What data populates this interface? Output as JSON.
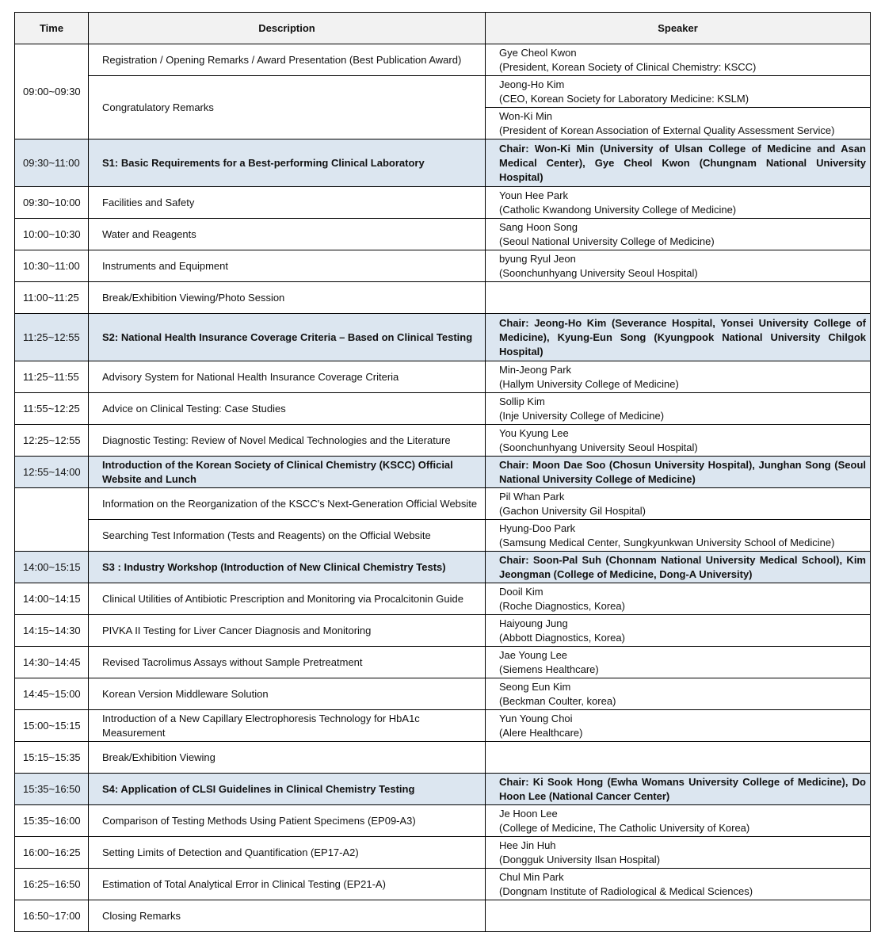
{
  "header": {
    "time": "Time",
    "description": "Description",
    "speaker": "Speaker"
  },
  "colors": {
    "header_bg": "#f2f2f2",
    "session_bg": "#dce6f0"
  },
  "rows": [
    {
      "time": "09:00~09:30",
      "description": "Registration / Opening Remarks / Award Presentation (Best Publication Award)",
      "speaker": [
        "Gye Cheol Kwon",
        "(President, Korean Society of Clinical Chemistry: KSCC)"
      ]
    },
    {
      "time": null,
      "description": "Congratulatory Remarks",
      "speaker": [
        "Jeong-Ho Kim",
        "(CEO, Korean Society for Laboratory Medicine: KSLM)"
      ]
    },
    {
      "time": null,
      "description": null,
      "speaker": [
        "Won-Ki Min",
        "(President of Korean Association of External Quality Assessment Service)"
      ]
    },
    {
      "session": true,
      "time": "09:30~11:00",
      "description": "S1: Basic Requirements for a Best-performing Clinical Laboratory",
      "speaker": [
        "Chair: Won-Ki Min (University of Ulsan College of Medicine and Asan Medical Center), Gye Cheol Kwon (Chungnam National University Hospital)"
      ]
    },
    {
      "time": "09:30~10:00",
      "description": "Facilities and Safety",
      "speaker": [
        "Youn Hee Park",
        "(Catholic Kwandong University College of Medicine)"
      ]
    },
    {
      "time": "10:00~10:30",
      "description": "Water and Reagents",
      "speaker": [
        "Sang Hoon Song",
        "(Seoul National University College of Medicine)"
      ]
    },
    {
      "time": "10:30~11:00",
      "description": "Instruments and Equipment",
      "speaker": [
        "byung Ryul Jeon",
        "(Soonchunhyang University Seoul Hospital)"
      ]
    },
    {
      "time": "11:00~11:25",
      "description": "Break/Exhibition Viewing/Photo Session",
      "speaker": []
    },
    {
      "session": true,
      "time": "11:25~12:55",
      "description": "S2: National Health Insurance Coverage Criteria – Based on Clinical Testing",
      "speaker": [
        "Chair: Jeong-Ho Kim (Severance Hospital, Yonsei University College of Medicine), Kyung-Eun Song (Kyungpook National University Chilgok Hospital)"
      ]
    },
    {
      "time": "11:25~11:55",
      "description": "Advisory System for National Health Insurance Coverage Criteria",
      "speaker": [
        "Min-Jeong Park",
        "(Hallym University College of Medicine)"
      ]
    },
    {
      "time": "11:55~12:25",
      "description": "Advice on Clinical Testing: Case Studies",
      "speaker": [
        "Sollip Kim",
        "(Inje University College of Medicine)"
      ]
    },
    {
      "time": "12:25~12:55",
      "description": "Diagnostic Testing: Review of Novel Medical Technologies and the Literature",
      "speaker": [
        "You Kyung Lee",
        "(Soonchunhyang University Seoul Hospital)"
      ]
    },
    {
      "session": true,
      "time": "12:55~14:00",
      "description": "Introduction of the Korean Society of Clinical Chemistry (KSCC) Official Website and Lunch",
      "speaker": [
        "Chair: Moon Dae Soo (Chosun University Hospital), Junghan Song (Seoul National University College of Medicine)"
      ]
    },
    {
      "time": "",
      "description": "Information on the Reorganization of the KSCC's Next-Generation Official Website",
      "speaker": [
        "Pil Whan Park",
        "(Gachon University Gil Hospital)"
      ]
    },
    {
      "time": null,
      "description": "Searching Test Information (Tests and Reagents) on the Official Website",
      "speaker": [
        "Hyung-Doo Park",
        "(Samsung Medical Center, Sungkyunkwan University School of Medicine)"
      ]
    },
    {
      "session": true,
      "time": "14:00~15:15",
      "description": "S3 : Industry Workshop (Introduction of New Clinical Chemistry Tests)",
      "speaker": [
        "Chair: Soon-Pal Suh (Chonnam National University Medical School), Kim Jeongman (College of Medicine, Dong-A University)"
      ]
    },
    {
      "time": "14:00~14:15",
      "description": "Clinical Utilities of Antibiotic Prescription and Monitoring via Procalcitonin Guide",
      "speaker": [
        "Dooil Kim",
        "(Roche Diagnostics, Korea)"
      ]
    },
    {
      "time": "14:15~14:30",
      "description": "PIVKA II Testing for Liver Cancer Diagnosis and Monitoring",
      "speaker": [
        "Haiyoung Jung",
        "(Abbott Diagnostics, Korea)"
      ]
    },
    {
      "time": "14:30~14:45",
      "description": "Revised Tacrolimus Assays without Sample Pretreatment",
      "speaker": [
        "Jae Young Lee",
        "(Siemens Healthcare)"
      ]
    },
    {
      "time": "14:45~15:00",
      "description": "Korean Version Middleware Solution",
      "speaker": [
        "Seong Eun Kim",
        "(Beckman Coulter, korea)"
      ]
    },
    {
      "time": "15:00~15:15",
      "description": "Introduction of a New Capillary Electrophoresis Technology for HbA1c Measurement",
      "speaker": [
        "Yun Young Choi",
        "(Alere Healthcare)"
      ]
    },
    {
      "time": "15:15~15:35",
      "description": "Break/Exhibition Viewing",
      "speaker": []
    },
    {
      "session": true,
      "time": "15:35~16:50",
      "description": "S4: Application of CLSI Guidelines in Clinical Chemistry Testing",
      "speaker": [
        "Chair: Ki Sook Hong (Ewha Womans University College of Medicine), Do Hoon Lee (National Cancer Center)"
      ]
    },
    {
      "time": "15:35~16:00",
      "description": "Comparison of Testing Methods Using Patient Specimens (EP09-A3)",
      "speaker": [
        "Je Hoon Lee",
        "(College of Medicine, The Catholic University of Korea)"
      ]
    },
    {
      "time": "16:00~16:25",
      "description": "Setting Limits of Detection and Quantification (EP17-A2)",
      "speaker": [
        "Hee Jin Huh",
        "(Dongguk University Ilsan Hospital)"
      ]
    },
    {
      "time": "16:25~16:50",
      "description": "Estimation of Total Analytical Error in Clinical Testing (EP21-A)",
      "speaker": [
        "Chul Min Park",
        "(Dongnam Institute of Radiological & Medical Sciences)"
      ]
    },
    {
      "time": "16:50~17:00",
      "description": "Closing Remarks",
      "speaker": []
    }
  ]
}
